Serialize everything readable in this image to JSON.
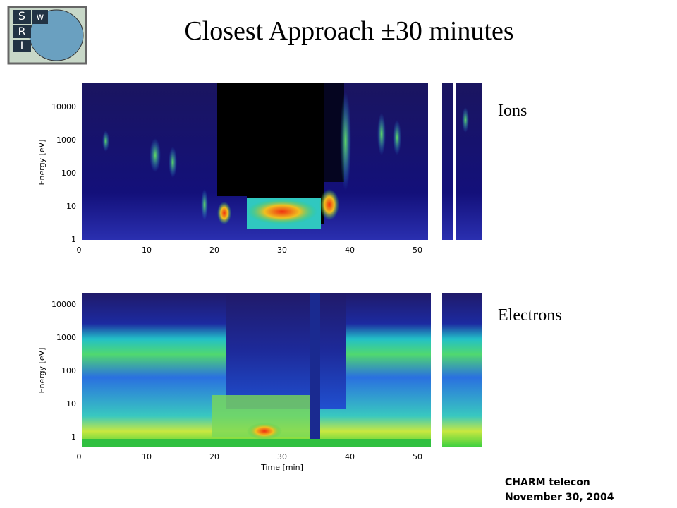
{
  "title": "Closest Approach ±30 minutes",
  "logo": [
    "S",
    "w",
    "R",
    "I"
  ],
  "panels": [
    {
      "label": "Ions",
      "y_axis_title": "Energy [eV]",
      "y_tick_labels": [
        "10000",
        "1000",
        "100",
        "10",
        "1"
      ],
      "x_tick_labels": [
        "0",
        "10",
        "20",
        "30",
        "40",
        "50"
      ]
    },
    {
      "label": "Electrons",
      "y_axis_title": "Energy [eV]",
      "y_tick_labels": [
        "10000",
        "1000",
        "100",
        "10",
        "1"
      ],
      "x_tick_labels": [
        "0",
        "10",
        "20",
        "30",
        "40",
        "50"
      ],
      "x_axis_title": "Time [min]"
    }
  ],
  "footer": [
    "CHARM telecon",
    "November 30, 2004"
  ]
}
